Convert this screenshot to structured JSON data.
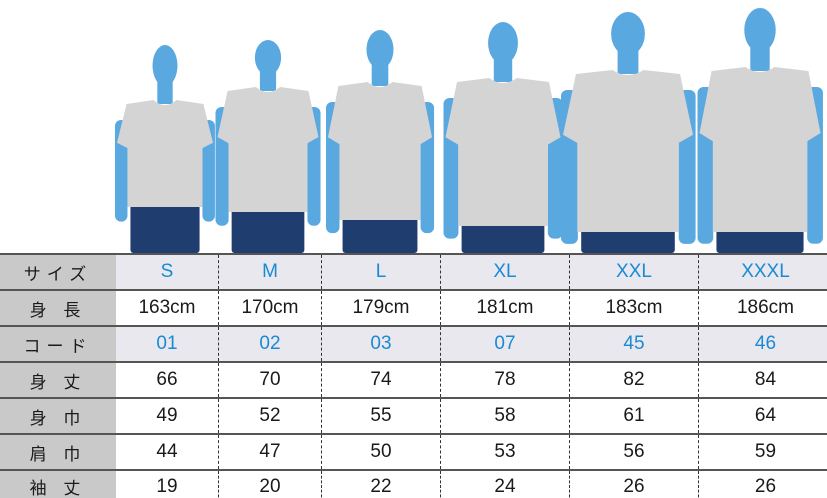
{
  "colors": {
    "accent": "#1a8ad4",
    "silhouette": "#5aa8e0",
    "shirt": "#d4d4d4",
    "jeans": "#1f3d6e",
    "label_bg": "#c9c9c9",
    "band_bg": "#e8e8ee"
  },
  "table": {
    "rows": [
      {
        "label": "サイズ",
        "band": true,
        "values": [
          "S",
          "M",
          "L",
          "XL",
          "XXL",
          "XXXL"
        ]
      },
      {
        "label": "身 長",
        "band": false,
        "values": [
          "163cm",
          "170cm",
          "179cm",
          "181cm",
          "183cm",
          "186cm"
        ]
      },
      {
        "label": "コード",
        "band": true,
        "values": [
          "01",
          "02",
          "03",
          "07",
          "45",
          "46"
        ]
      },
      {
        "label": "身 丈",
        "band": false,
        "values": [
          "66",
          "70",
          "74",
          "78",
          "82",
          "84"
        ]
      },
      {
        "label": "身 巾",
        "band": false,
        "values": [
          "49",
          "52",
          "55",
          "58",
          "61",
          "64"
        ]
      },
      {
        "label": "肩 巾",
        "band": false,
        "values": [
          "44",
          "47",
          "50",
          "53",
          "56",
          "59"
        ]
      },
      {
        "label": "袖 丈",
        "band": false,
        "values": [
          "19",
          "20",
          "22",
          "24",
          "26",
          "26"
        ]
      }
    ]
  }
}
